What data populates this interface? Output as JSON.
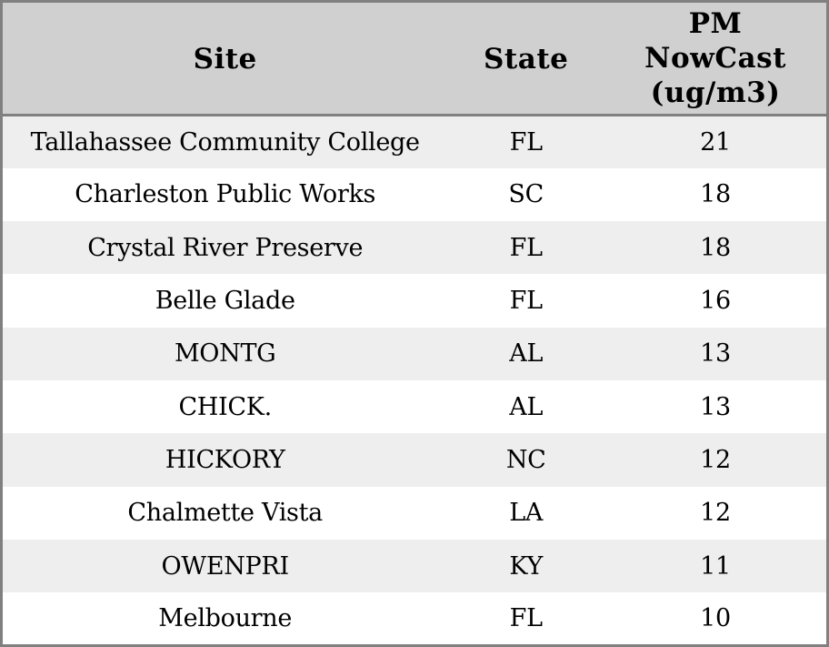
{
  "chart_data": {
    "type": "table",
    "columns": [
      "Site",
      "State",
      "PM NowCast (ug/m3)"
    ],
    "rows": [
      {
        "site": "Tallahassee Community College",
        "state": "FL",
        "pm_nowcast": 21
      },
      {
        "site": "Charleston Public Works",
        "state": "SC",
        "pm_nowcast": 18
      },
      {
        "site": "Crystal River Preserve",
        "state": "FL",
        "pm_nowcast": 18
      },
      {
        "site": "Belle Glade",
        "state": "FL",
        "pm_nowcast": 16
      },
      {
        "site": "MONTG",
        "state": "AL",
        "pm_nowcast": 13
      },
      {
        "site": "CHICK.",
        "state": "AL",
        "pm_nowcast": 13
      },
      {
        "site": "HICKORY",
        "state": "NC",
        "pm_nowcast": 12
      },
      {
        "site": "Chalmette Vista",
        "state": "LA",
        "pm_nowcast": 12
      },
      {
        "site": "OWENPRI",
        "state": "KY",
        "pm_nowcast": 11
      },
      {
        "site": "Melbourne",
        "state": "FL",
        "pm_nowcast": 10
      }
    ],
    "layout": {
      "legend": "none",
      "grid": "off",
      "row_striping": "alternate",
      "text_align": "center"
    }
  },
  "colors": {
    "border": "#808080",
    "header_bg": "#d0d0d0",
    "row_alt_bg": "#eeeeee",
    "row_bg": "#ffffff",
    "text": "#000000"
  }
}
